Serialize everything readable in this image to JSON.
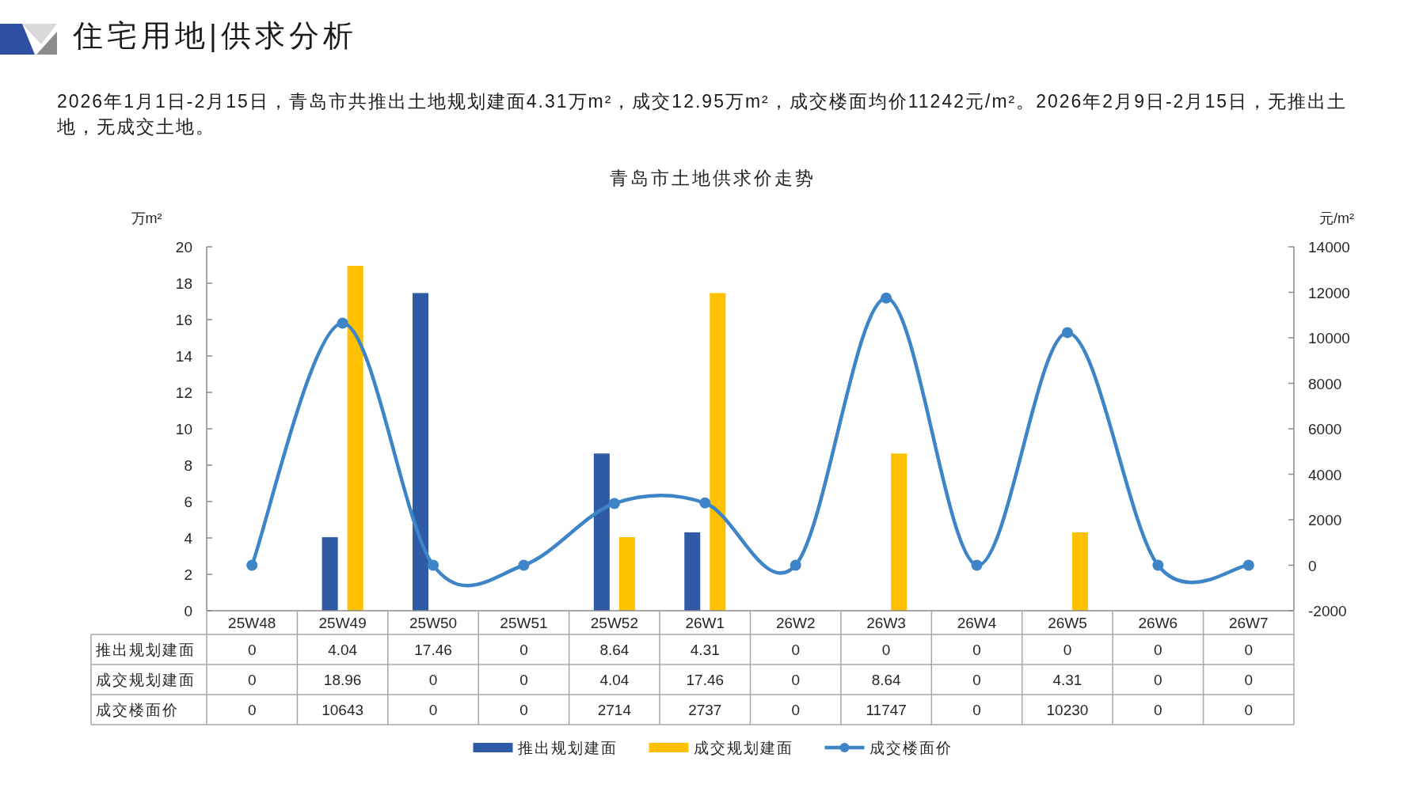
{
  "chart_data": {
    "type": "bar",
    "title": "青岛市土地供求价走势",
    "annotations": [
      "住宅用地|供求分析",
      "2026年1月1日-2月15日，青岛市共推出土地规划建面4.31万m²，成交12.95万m²，成交楼面均价11242元/m²。2026年2月9日-2月15日，无推出土地，无成交土地。"
    ],
    "ylabel": "万m²",
    "y2label": "元/m²",
    "categories": [
      "25W48",
      "25W49",
      "25W50",
      "25W51",
      "25W52",
      "26W1",
      "26W2",
      "26W3",
      "26W4",
      "26W5",
      "26W6",
      "26W7"
    ],
    "series": [
      {
        "name": "推出规划建面",
        "color": "#2f5aa6",
        "values": [
          0,
          4.04,
          17.46,
          0,
          8.64,
          4.31,
          0,
          0,
          0,
          0,
          0,
          0
        ]
      },
      {
        "name": "成交规划建面",
        "color": "#ffc000",
        "values": [
          0,
          18.96,
          0,
          0,
          4.04,
          17.46,
          0,
          8.64,
          0,
          4.31,
          0,
          0
        ]
      },
      {
        "name": "成交楼面价",
        "type": "line",
        "axis": "y2",
        "marker": "circle",
        "color": "#3d85c6",
        "values": [
          0,
          10643,
          0,
          0,
          2714,
          2737,
          0,
          11747,
          0,
          10230,
          0,
          0
        ]
      }
    ],
    "ylim": [
      0,
      20
    ],
    "yticks": [
      0,
      2,
      4,
      6,
      8,
      10,
      12,
      14,
      16,
      18,
      20
    ],
    "y2lim": [
      -2000,
      14000
    ],
    "y2ticks": [
      -2000,
      0,
      2000,
      4000,
      6000,
      8000,
      10000,
      12000,
      14000
    ],
    "legend": "bottom",
    "data_labels": true
  }
}
